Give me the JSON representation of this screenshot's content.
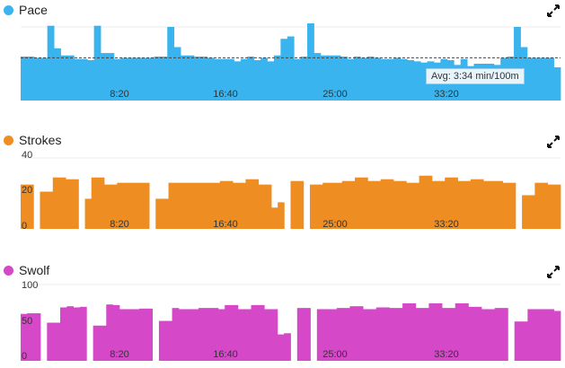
{
  "colors": {
    "pace": "#3ab4ee",
    "strokes": "#ee8e22",
    "swolf": "#d548c8"
  },
  "expand_icon": "expand-arrows-icon",
  "chart_data": [
    {
      "type": "bar",
      "id": "pace",
      "legend": "Pace",
      "color": "#3ab4ee",
      "x_ticks": [
        "8:20",
        "16:40",
        "25:00",
        "33:20"
      ],
      "y_ticks": [],
      "avg_label": "Avg: 3:34 min/100m",
      "avg_value": 36,
      "ylim": [
        0,
        62
      ],
      "values": [
        37,
        37,
        36,
        36,
        63,
        44,
        38,
        38,
        35,
        35,
        34,
        63,
        40,
        40,
        35,
        36,
        36,
        36,
        36,
        36,
        37,
        37,
        62,
        45,
        38,
        38,
        37,
        37,
        36,
        35,
        35,
        35,
        33,
        35,
        37,
        34,
        36,
        33,
        38,
        52,
        54,
        35,
        37,
        65,
        40,
        38,
        38,
        38,
        37,
        35,
        37,
        36,
        37,
        36,
        35,
        35,
        36,
        35,
        34,
        33,
        32,
        33,
        32,
        35,
        34,
        30,
        35,
        29,
        31,
        31,
        31,
        30,
        36,
        37,
        62,
        45,
        36,
        36,
        36,
        36,
        28
      ]
    },
    {
      "type": "bar",
      "id": "strokes",
      "legend": "Strokes",
      "color": "#ee8e22",
      "x_ticks": [
        "8:20",
        "16:40",
        "25:00",
        "33:20"
      ],
      "y_ticks": [
        "40",
        "20",
        "0"
      ],
      "ylim": [
        0,
        40
      ],
      "values": [
        25,
        25,
        0,
        21,
        21,
        29,
        29,
        28,
        28,
        0,
        17,
        29,
        29,
        25,
        25,
        26,
        26,
        26,
        26,
        26,
        0,
        17,
        17,
        26,
        26,
        26,
        26,
        26,
        26,
        26,
        26,
        27,
        27,
        26,
        26,
        28,
        28,
        25,
        25,
        12,
        15,
        0,
        27,
        27,
        0,
        25,
        25,
        26,
        26,
        26,
        27,
        27,
        29,
        29,
        27,
        27,
        28,
        28,
        27,
        27,
        26,
        26,
        30,
        30,
        27,
        27,
        29,
        29,
        27,
        27,
        28,
        28,
        27,
        27,
        27,
        26,
        26,
        0,
        19,
        19,
        26,
        26,
        25,
        25
      ]
    },
    {
      "type": "bar",
      "id": "swolf",
      "legend": "Swolf",
      "color": "#d548c8",
      "x_ticks": [
        "8:20",
        "16:40",
        "25:00",
        "33:20"
      ],
      "y_ticks": [
        "100",
        "50",
        "0"
      ],
      "ylim": [
        0,
        130
      ],
      "values": [
        80,
        81,
        81,
        0,
        65,
        65,
        91,
        93,
        91,
        92,
        0,
        60,
        60,
        96,
        95,
        88,
        88,
        88,
        89,
        89,
        0,
        68,
        68,
        90,
        88,
        88,
        88,
        90,
        90,
        90,
        88,
        95,
        95,
        88,
        88,
        95,
        95,
        88,
        88,
        45,
        47,
        0,
        90,
        90,
        0,
        88,
        88,
        88,
        90,
        90,
        93,
        93,
        88,
        88,
        91,
        91,
        90,
        90,
        98,
        98,
        90,
        90,
        98,
        98,
        90,
        90,
        98,
        98,
        92,
        92,
        88,
        88,
        90,
        90,
        0,
        67,
        67,
        88,
        88,
        88,
        88,
        85
      ]
    }
  ]
}
